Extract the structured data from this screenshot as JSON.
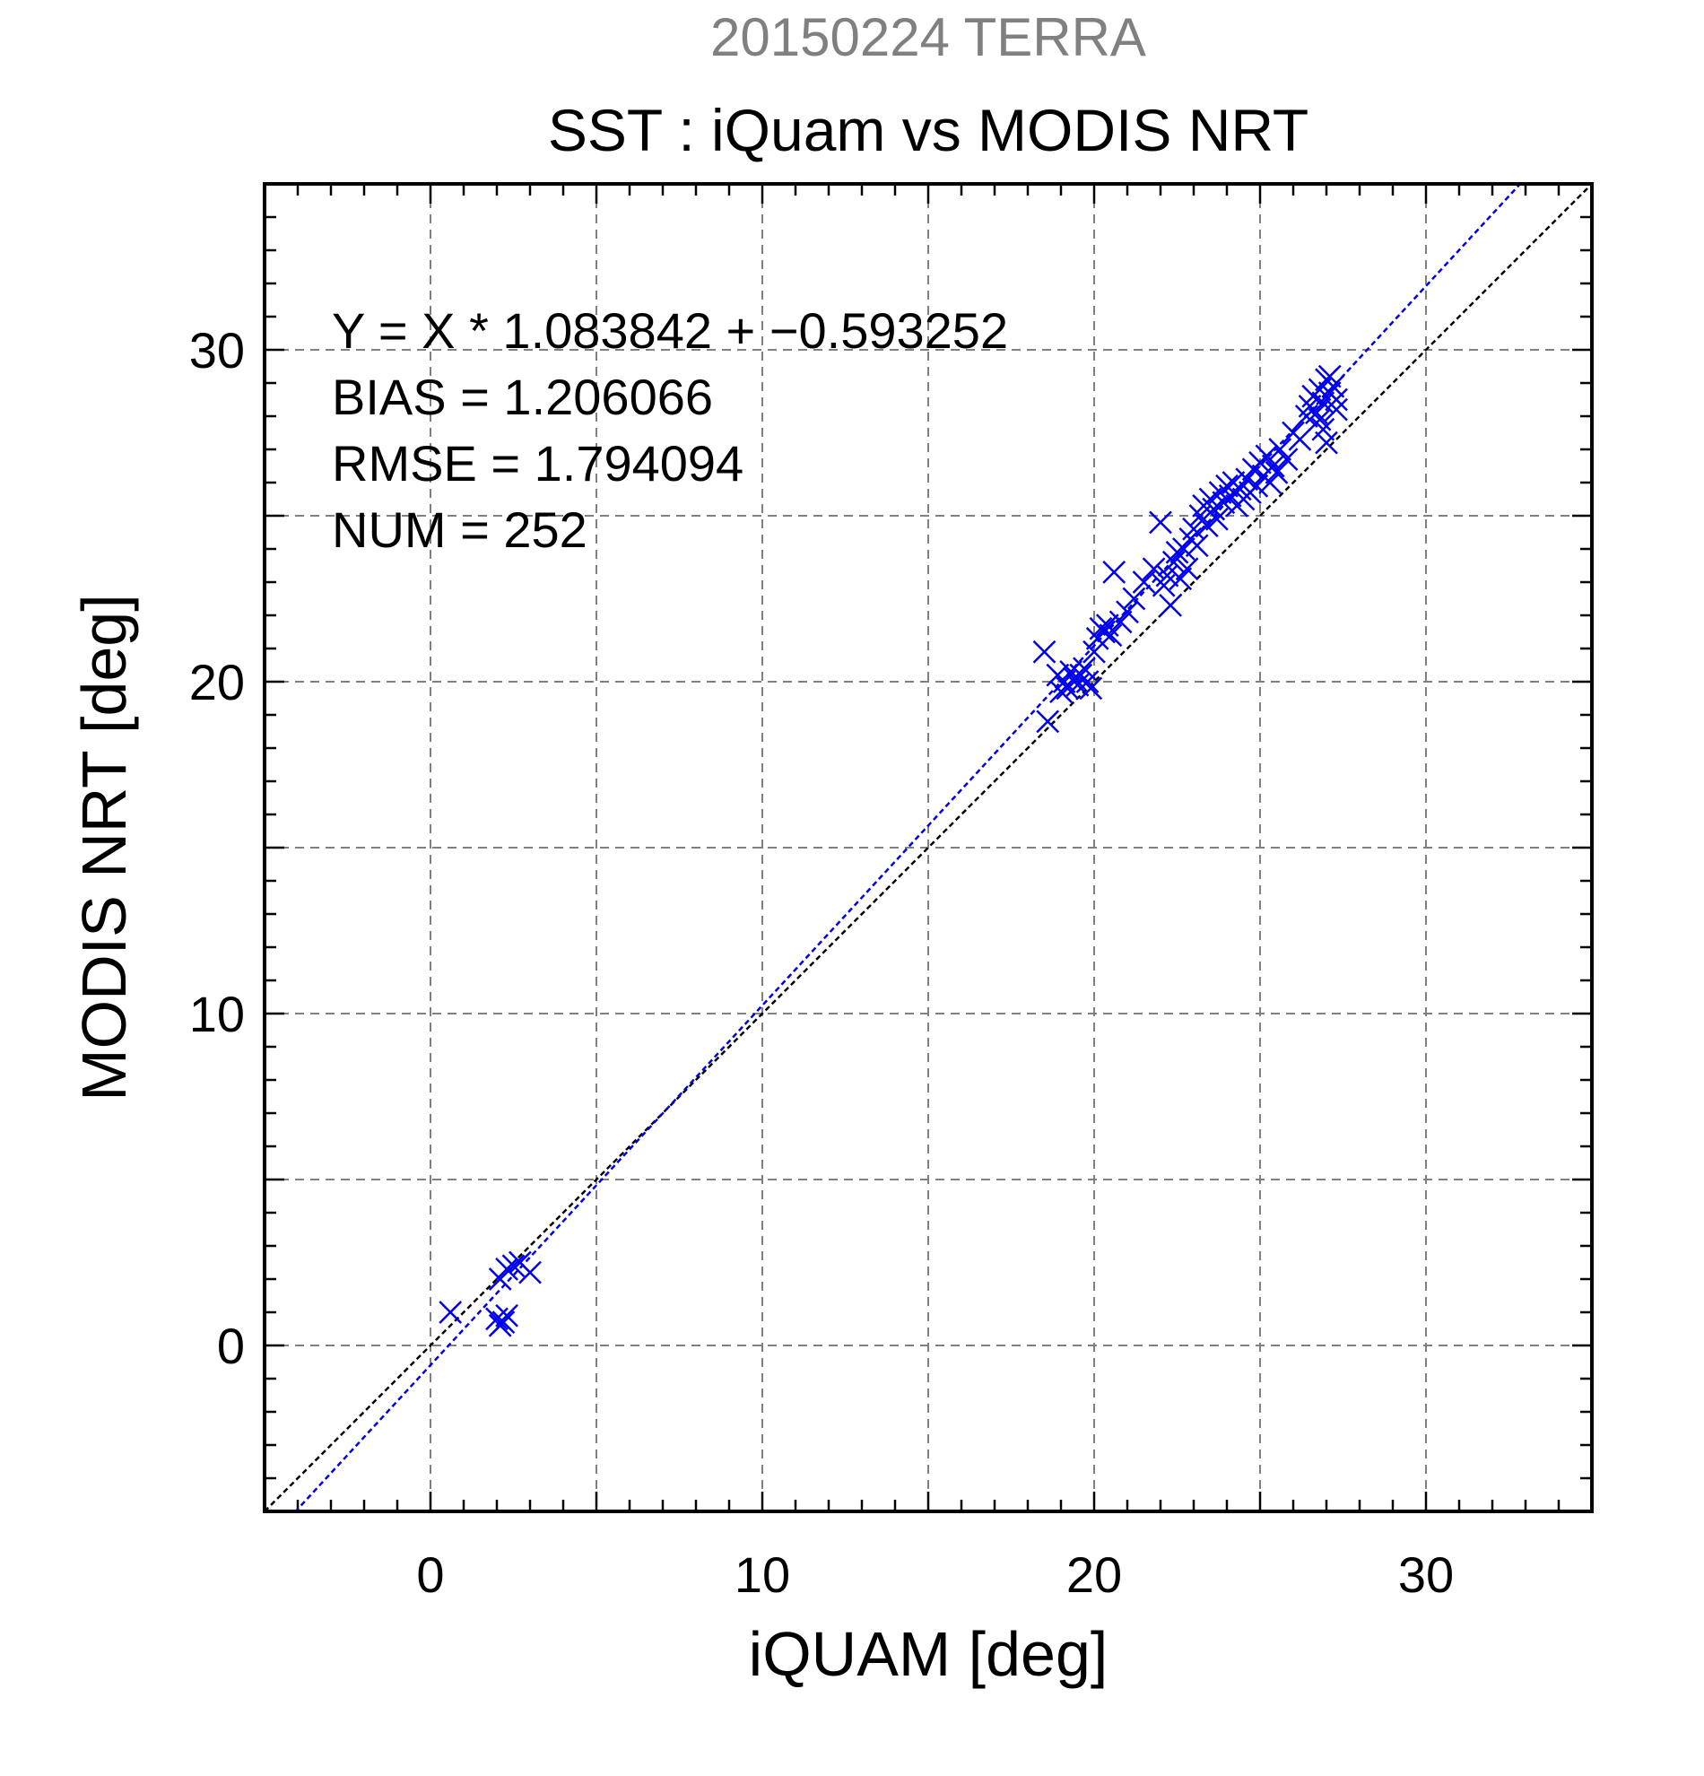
{
  "chart_data": {
    "type": "scatter",
    "supertitle": "20150224 TERRA",
    "title": "SST : iQuam vs MODIS NRT",
    "xlabel": "iQUAM [deg]",
    "ylabel": "MODIS NRT [deg]",
    "xlim": [
      -5,
      35
    ],
    "ylim": [
      -5,
      35
    ],
    "xticks": [
      0,
      10,
      20,
      30
    ],
    "yticks": [
      0,
      10,
      20,
      30
    ],
    "grid": true,
    "stats": [
      "Y = X * 1.083842 + −0.593252",
      "BIAS = 1.206066",
      "RMSE = 1.794094",
      "NUM = 252"
    ],
    "fit_line": {
      "slope": 1.083842,
      "intercept": -0.593252
    },
    "identity_line": {
      "slope": 1,
      "intercept": 0
    },
    "colors": {
      "points": "#0000ee",
      "fit": "#0000ee",
      "identity": "#000000",
      "supertitle": "#808080",
      "grid": "#808080"
    },
    "series": [
      {
        "marker": "x",
        "points": [
          [
            0.6,
            1.0
          ],
          [
            2.0,
            0.8
          ],
          [
            2.1,
            0.6
          ],
          [
            2.2,
            0.7
          ],
          [
            2.3,
            0.9
          ],
          [
            2.1,
            2.0
          ],
          [
            2.3,
            2.3
          ],
          [
            2.5,
            2.4
          ],
          [
            2.7,
            2.5
          ],
          [
            3.0,
            2.2
          ],
          [
            18.5,
            20.9
          ],
          [
            18.6,
            18.8
          ],
          [
            18.9,
            20.2
          ],
          [
            19.0,
            19.7
          ],
          [
            19.1,
            20.0
          ],
          [
            19.2,
            19.8
          ],
          [
            19.3,
            20.3
          ],
          [
            19.4,
            20.1
          ],
          [
            19.5,
            19.9
          ],
          [
            19.6,
            20.2
          ],
          [
            19.7,
            20.4
          ],
          [
            19.8,
            20.0
          ],
          [
            19.9,
            19.8
          ],
          [
            20.0,
            20.9
          ],
          [
            20.1,
            21.3
          ],
          [
            20.2,
            21.6
          ],
          [
            20.3,
            21.5
          ],
          [
            20.4,
            21.7
          ],
          [
            20.5,
            21.4
          ],
          [
            20.6,
            23.3
          ],
          [
            20.8,
            21.8
          ],
          [
            21.0,
            22.1
          ],
          [
            21.2,
            22.5
          ],
          [
            21.5,
            23.0
          ],
          [
            21.8,
            23.4
          ],
          [
            22.0,
            24.8
          ],
          [
            22.1,
            22.9
          ],
          [
            22.2,
            23.2
          ],
          [
            22.3,
            22.3
          ],
          [
            22.4,
            23.6
          ],
          [
            22.5,
            23.9
          ],
          [
            22.6,
            23.1
          ],
          [
            22.7,
            24.0
          ],
          [
            22.8,
            23.4
          ],
          [
            22.9,
            24.3
          ],
          [
            23.0,
            24.6
          ],
          [
            23.1,
            24.1
          ],
          [
            23.2,
            25.0
          ],
          [
            23.3,
            25.3
          ],
          [
            23.4,
            24.7
          ],
          [
            23.5,
            25.5
          ],
          [
            23.6,
            25.2
          ],
          [
            23.7,
            24.9
          ],
          [
            23.8,
            25.7
          ],
          [
            23.9,
            25.4
          ],
          [
            24.0,
            25.9
          ],
          [
            24.1,
            25.6
          ],
          [
            24.2,
            26.0
          ],
          [
            24.3,
            25.3
          ],
          [
            24.4,
            25.8
          ],
          [
            24.5,
            25.5
          ],
          [
            24.6,
            26.1
          ],
          [
            24.7,
            25.7
          ],
          [
            24.8,
            26.4
          ],
          [
            24.9,
            25.9
          ],
          [
            25.0,
            26.6
          ],
          [
            25.1,
            26.2
          ],
          [
            25.2,
            26.8
          ],
          [
            25.3,
            26.0
          ],
          [
            25.4,
            26.5
          ],
          [
            25.5,
            26.3
          ],
          [
            25.6,
            27.0
          ],
          [
            25.8,
            26.7
          ],
          [
            26.0,
            27.5
          ],
          [
            26.2,
            27.3
          ],
          [
            26.5,
            28.3
          ],
          [
            26.6,
            28.6
          ],
          [
            26.7,
            28.1
          ],
          [
            26.8,
            28.8
          ],
          [
            26.9,
            28.4
          ],
          [
            27.0,
            29.1
          ],
          [
            27.1,
            28.7
          ],
          [
            27.2,
            28.9
          ],
          [
            27.3,
            28.5
          ],
          [
            27.0,
            27.2
          ],
          [
            26.9,
            27.6
          ],
          [
            27.3,
            28.2
          ],
          [
            26.4,
            28.0
          ],
          [
            27.1,
            29.2
          ],
          [
            26.8,
            27.9
          ]
        ]
      }
    ]
  }
}
